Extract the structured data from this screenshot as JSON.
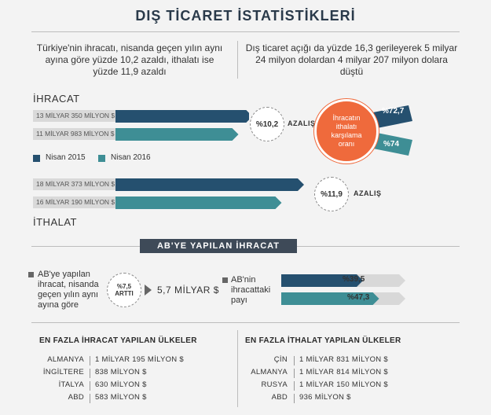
{
  "title": "DIŞ TİCARET İSTATİSTİKLERİ",
  "intro_left": "Türkiye'nin ihracatı, nisanda geçen yılın aynı ayına göre yüzde 10,2 azaldı, ithalatı ise yüzde 11,9 azaldı",
  "intro_right": "Dış ticaret açığı da yüzde 16,3 gerileyerek 5 milyar 24 milyon dolardan 4 milyar 207 milyon dolara düştü",
  "exports": {
    "label": "İHRACAT",
    "bar_2015": "13 MİLYAR 350 MİLYON $",
    "bar_2016": "11 MİLYAR 983 MİLYON $",
    "value_2015_musd": 13350,
    "value_2016_musd": 11983,
    "pct": "%10,2",
    "direction": "AZALIŞ"
  },
  "imports": {
    "label": "İTHALAT",
    "bar_2015": "18 MİLYAR 373 MİLYON $",
    "bar_2016": "16 MİLYAR 190 MİLYON $",
    "value_2015_musd": 18373,
    "value_2016_musd": 16190,
    "pct": "%11,9",
    "direction": "AZALIŞ"
  },
  "legend": {
    "y2015": "Nisan 2015",
    "y2016": "Nisan 2016"
  },
  "coverage": {
    "circle_text": "İhracatın ithalatı karşılama oranı",
    "pct_2015": "%72,7",
    "pct_2016": "%74"
  },
  "colors": {
    "dark": "#25506f",
    "teal": "#3e8e95",
    "orange": "#ef6a3c",
    "banner": "#3e4a58"
  },
  "eu": {
    "banner": "AB'YE YAPILAN İHRACAT",
    "text": "AB'ye yapılan ihracat, nisanda geçen yılın aynı ayına göre",
    "badge_pct": "%7,5",
    "badge_label": "ARTTI",
    "amount": "5,7 MİLYAR $",
    "share_label": "AB'nin ihracattaki payı",
    "share_2015": "%39,5",
    "share_2016": "%47,3",
    "share_2015_value": 39.5,
    "share_2016_value": 47.3
  },
  "top_exports": {
    "heading": "EN FAZLA İHRACAT YAPILAN ÜLKELER",
    "rows": [
      {
        "country": "ALMANYA",
        "value": "1 MİLYAR 195 MİLYON $"
      },
      {
        "country": "İNGİLTERE",
        "value": "838 MİLYON $"
      },
      {
        "country": "İTALYA",
        "value": "630 MİLYON $"
      },
      {
        "country": "ABD",
        "value": "583 MİLYON $"
      }
    ]
  },
  "top_imports": {
    "heading": "EN FAZLA İTHALAT YAPILAN ÜLKELER",
    "rows": [
      {
        "country": "ÇİN",
        "value": "1 MİLYAR 831 MİLYON $"
      },
      {
        "country": "ALMANYA",
        "value": "1 MİLYAR 814 MİLYON $"
      },
      {
        "country": "RUSYA",
        "value": "1 MİLYAR 150 MİLYON $"
      },
      {
        "country": "ABD",
        "value": "936 MİLYON $"
      }
    ]
  }
}
